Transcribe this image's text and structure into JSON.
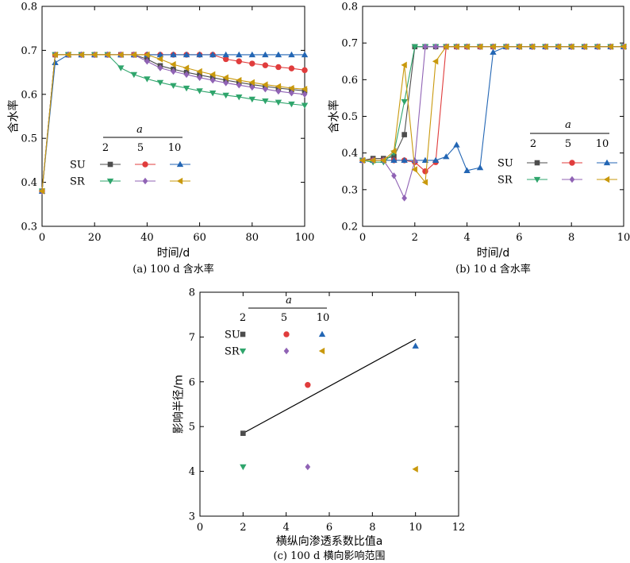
{
  "chart_data": [
    {
      "id": "a",
      "type": "line",
      "caption": "(a) 100 d 含水率",
      "xlabel": "时间/d",
      "ylabel": "含水率",
      "xlim": [
        0,
        100
      ],
      "ylim": [
        0.3,
        0.8
      ],
      "xticks": [
        "0",
        "20",
        "40",
        "60",
        "80",
        "100"
      ],
      "yticks": [
        "0.3",
        "0.4",
        "0.5",
        "0.6",
        "0.7",
        "0.8"
      ],
      "legend": {
        "title": "a",
        "columns": [
          "2",
          "5",
          "10"
        ],
        "rows": [
          "SU",
          "SR"
        ]
      },
      "series": [
        {
          "group": "SU",
          "a": "2",
          "color": "#4d4d4d",
          "marker": "square",
          "x": [
            0,
            5,
            10,
            15,
            20,
            25,
            30,
            35,
            40,
            45,
            50,
            55,
            60,
            65,
            70,
            75,
            80,
            85,
            90,
            95,
            100
          ],
          "y": [
            0.38,
            0.69,
            0.69,
            0.69,
            0.69,
            0.69,
            0.69,
            0.69,
            0.68,
            0.665,
            0.657,
            0.65,
            0.644,
            0.638,
            0.632,
            0.627,
            0.622,
            0.618,
            0.614,
            0.611,
            0.608
          ]
        },
        {
          "group": "SU",
          "a": "5",
          "color": "#e03c3c",
          "marker": "circle",
          "x": [
            0,
            5,
            10,
            15,
            20,
            25,
            30,
            35,
            40,
            45,
            50,
            55,
            60,
            65,
            70,
            75,
            80,
            85,
            90,
            95,
            100
          ],
          "y": [
            0.38,
            0.69,
            0.69,
            0.69,
            0.69,
            0.69,
            0.69,
            0.69,
            0.69,
            0.69,
            0.69,
            0.69,
            0.69,
            0.69,
            0.68,
            0.675,
            0.67,
            0.666,
            0.662,
            0.659,
            0.655
          ]
        },
        {
          "group": "SU",
          "a": "10",
          "color": "#2366b4",
          "marker": "triangle-up",
          "x": [
            0,
            5,
            10,
            15,
            20,
            25,
            30,
            35,
            40,
            45,
            50,
            55,
            60,
            65,
            70,
            75,
            80,
            85,
            90,
            95,
            100
          ],
          "y": [
            0.38,
            0.672,
            0.69,
            0.69,
            0.69,
            0.69,
            0.69,
            0.69,
            0.69,
            0.69,
            0.69,
            0.69,
            0.69,
            0.69,
            0.69,
            0.69,
            0.69,
            0.69,
            0.69,
            0.69,
            0.69
          ]
        },
        {
          "group": "SR",
          "a": "2",
          "color": "#2fa56c",
          "marker": "triangle-down",
          "x": [
            0,
            5,
            10,
            15,
            20,
            25,
            30,
            35,
            40,
            45,
            50,
            55,
            60,
            65,
            70,
            75,
            80,
            85,
            90,
            95,
            100
          ],
          "y": [
            0.38,
            0.69,
            0.69,
            0.69,
            0.69,
            0.69,
            0.66,
            0.645,
            0.635,
            0.627,
            0.62,
            0.614,
            0.608,
            0.603,
            0.598,
            0.594,
            0.589,
            0.585,
            0.582,
            0.578,
            0.575
          ]
        },
        {
          "group": "SR",
          "a": "5",
          "color": "#9063b5",
          "marker": "diamond",
          "x": [
            0,
            5,
            10,
            15,
            20,
            25,
            30,
            35,
            40,
            45,
            50,
            55,
            60,
            65,
            70,
            75,
            80,
            85,
            90,
            95,
            100
          ],
          "y": [
            0.38,
            0.69,
            0.69,
            0.69,
            0.69,
            0.69,
            0.69,
            0.69,
            0.675,
            0.66,
            0.652,
            0.645,
            0.638,
            0.632,
            0.626,
            0.621,
            0.616,
            0.612,
            0.607,
            0.603,
            0.6
          ]
        },
        {
          "group": "SR",
          "a": "10",
          "color": "#c9990d",
          "marker": "triangle-left",
          "x": [
            0,
            5,
            10,
            15,
            20,
            25,
            30,
            35,
            40,
            45,
            50,
            55,
            60,
            65,
            70,
            75,
            80,
            85,
            90,
            95,
            100
          ],
          "y": [
            0.38,
            0.69,
            0.69,
            0.69,
            0.69,
            0.69,
            0.69,
            0.69,
            0.69,
            0.68,
            0.668,
            0.66,
            0.652,
            0.645,
            0.638,
            0.632,
            0.627,
            0.622,
            0.618,
            0.614,
            0.612
          ]
        }
      ]
    },
    {
      "id": "b",
      "type": "line",
      "caption": "(b) 10 d 含水率",
      "xlabel": "时间/d",
      "ylabel": "含水率",
      "xlim": [
        0,
        10
      ],
      "ylim": [
        0.2,
        0.8
      ],
      "xticks": [
        "0",
        "2",
        "4",
        "6",
        "8",
        "10"
      ],
      "yticks": [
        "0.2",
        "0.3",
        "0.4",
        "0.5",
        "0.6",
        "0.7",
        "0.8"
      ],
      "legend": {
        "title": "a",
        "columns": [
          "2",
          "5",
          "10"
        ],
        "rows": [
          "SU",
          "SR"
        ]
      },
      "series": [
        {
          "group": "SU",
          "a": "2",
          "color": "#4d4d4d",
          "marker": "square",
          "x": [
            0,
            0.4,
            0.8,
            1.2,
            1.6,
            2.0,
            2.4,
            2.8,
            3.2,
            3.6,
            4,
            4.5,
            5,
            5.5,
            6,
            6.5,
            7,
            7.5,
            8,
            8.5,
            9,
            9.5,
            10
          ],
          "y": [
            0.38,
            0.385,
            0.385,
            0.39,
            0.45,
            0.69,
            0.69,
            0.69,
            0.69,
            0.69,
            0.69,
            0.69,
            0.69,
            0.69,
            0.69,
            0.69,
            0.69,
            0.69,
            0.69,
            0.69,
            0.69,
            0.69,
            0.69
          ]
        },
        {
          "group": "SU",
          "a": "5",
          "color": "#e03c3c",
          "marker": "circle",
          "x": [
            0,
            0.4,
            0.8,
            1.2,
            1.6,
            2.0,
            2.4,
            2.8,
            3.2,
            3.6,
            4,
            4.5,
            5,
            5.5,
            6,
            6.5,
            7,
            7.5,
            8,
            8.5,
            9,
            9.5,
            10
          ],
          "y": [
            0.38,
            0.38,
            0.38,
            0.38,
            0.38,
            0.375,
            0.35,
            0.375,
            0.69,
            0.69,
            0.69,
            0.69,
            0.69,
            0.69,
            0.69,
            0.69,
            0.69,
            0.69,
            0.69,
            0.69,
            0.69,
            0.69,
            0.69
          ]
        },
        {
          "group": "SU",
          "a": "10",
          "color": "#2366b4",
          "marker": "triangle-up",
          "x": [
            0,
            0.4,
            0.8,
            1.2,
            1.6,
            2.0,
            2.4,
            2.8,
            3.2,
            3.6,
            4,
            4.5,
            5,
            5.5,
            6,
            6.5,
            7,
            7.5,
            8,
            8.5,
            9,
            9.5,
            10
          ],
          "y": [
            0.38,
            0.38,
            0.38,
            0.38,
            0.38,
            0.38,
            0.38,
            0.38,
            0.39,
            0.422,
            0.352,
            0.36,
            0.675,
            0.69,
            0.69,
            0.69,
            0.69,
            0.69,
            0.69,
            0.69,
            0.69,
            0.69,
            0.69
          ]
        },
        {
          "group": "SR",
          "a": "2",
          "color": "#2fa56c",
          "marker": "triangle-down",
          "x": [
            0,
            0.4,
            0.8,
            1.2,
            1.6,
            2.0,
            2.4,
            2.8,
            3.2,
            3.6,
            4,
            4.5,
            5,
            5.5,
            6,
            6.5,
            7,
            7.5,
            8,
            8.5,
            9,
            9.5,
            10
          ],
          "y": [
            0.38,
            0.375,
            0.375,
            0.4,
            0.54,
            0.69,
            0.69,
            0.69,
            0.69,
            0.69,
            0.69,
            0.69,
            0.69,
            0.69,
            0.69,
            0.69,
            0.69,
            0.69,
            0.69,
            0.69,
            0.69,
            0.69,
            0.69
          ]
        },
        {
          "group": "SR",
          "a": "5",
          "color": "#9063b5",
          "marker": "diamond",
          "x": [
            0,
            0.4,
            0.8,
            1.2,
            1.6,
            2.0,
            2.4,
            2.8,
            3.2,
            3.6,
            4,
            4.5,
            5,
            5.5,
            6,
            6.5,
            7,
            7.5,
            8,
            8.5,
            9,
            9.5,
            10
          ],
          "y": [
            0.38,
            0.38,
            0.38,
            0.338,
            0.277,
            0.378,
            0.69,
            0.69,
            0.69,
            0.69,
            0.69,
            0.69,
            0.69,
            0.69,
            0.69,
            0.69,
            0.69,
            0.69,
            0.69,
            0.69,
            0.69,
            0.69,
            0.69
          ]
        },
        {
          "group": "SR",
          "a": "10",
          "color": "#c9990d",
          "marker": "triangle-left",
          "x": [
            0,
            0.4,
            0.8,
            1.2,
            1.6,
            2.0,
            2.4,
            2.8,
            3.2,
            3.6,
            4,
            4.5,
            5,
            5.5,
            6,
            6.5,
            7,
            7.5,
            8,
            8.5,
            9,
            9.5,
            10
          ],
          "y": [
            0.38,
            0.38,
            0.38,
            0.405,
            0.64,
            0.355,
            0.32,
            0.65,
            0.69,
            0.69,
            0.69,
            0.69,
            0.69,
            0.69,
            0.69,
            0.69,
            0.69,
            0.69,
            0.69,
            0.69,
            0.69,
            0.69,
            0.69
          ]
        }
      ]
    },
    {
      "id": "c",
      "type": "scatter",
      "caption": "(c) 100 d 横向影响范围",
      "xlabel": "横纵向渗透系数比值a",
      "ylabel": "影响半径/m",
      "xlim": [
        0,
        12
      ],
      "ylim": [
        3,
        8
      ],
      "xticks": [
        "0",
        "2",
        "4",
        "6",
        "8",
        "10",
        "12"
      ],
      "yticks": [
        "3",
        "4",
        "5",
        "6",
        "7",
        "8"
      ],
      "legend": {
        "title": "a",
        "columns": [
          "2",
          "5",
          "10"
        ],
        "rows": [
          "SU",
          "SR"
        ]
      },
      "series": [
        {
          "group": "SU",
          "a": "2",
          "color": "#4d4d4d",
          "marker": "square",
          "x": [
            2
          ],
          "y": [
            4.85
          ]
        },
        {
          "group": "SU",
          "a": "5",
          "color": "#e03c3c",
          "marker": "circle",
          "x": [
            5
          ],
          "y": [
            5.93
          ]
        },
        {
          "group": "SU",
          "a": "10",
          "color": "#2366b4",
          "marker": "triangle-up",
          "x": [
            10
          ],
          "y": [
            6.8
          ]
        },
        {
          "group": "SR",
          "a": "2",
          "color": "#2fa56c",
          "marker": "triangle-down",
          "x": [
            2
          ],
          "y": [
            4.1
          ]
        },
        {
          "group": "SR",
          "a": "5",
          "color": "#9063b5",
          "marker": "diamond",
          "x": [
            5
          ],
          "y": [
            4.1
          ]
        },
        {
          "group": "SR",
          "a": "10",
          "color": "#c9990d",
          "marker": "triangle-left",
          "x": [
            10
          ],
          "y": [
            4.05
          ]
        }
      ],
      "fit_line": {
        "x": [
          2,
          10
        ],
        "y": [
          4.85,
          6.95
        ],
        "color": "#000000"
      }
    }
  ]
}
